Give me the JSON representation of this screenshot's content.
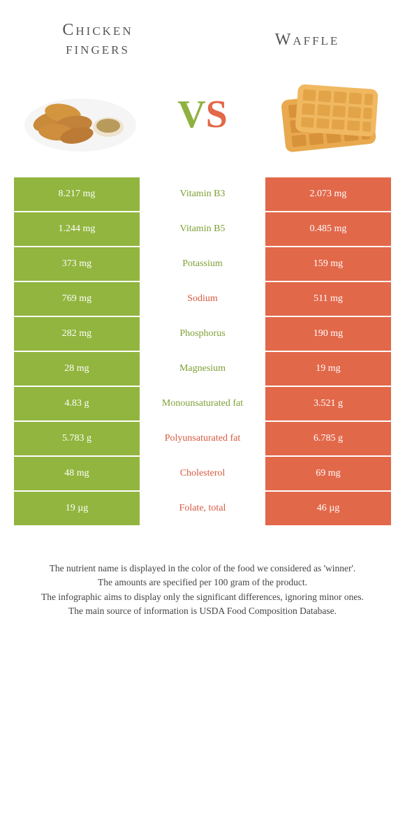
{
  "header": {
    "left_title": "Chicken fingers",
    "right_title": "Waffle",
    "vs_v": "V",
    "vs_s": "S"
  },
  "colors": {
    "green": "#91b53e",
    "orange": "#e2684a",
    "green_text": "#7da035",
    "orange_text": "#d65a3f",
    "bg": "#ffffff"
  },
  "rows": [
    {
      "left": "8.217 mg",
      "label": "Vitamin B3",
      "right": "2.073 mg",
      "winner": "left"
    },
    {
      "left": "1.244 mg",
      "label": "Vitamin B5",
      "right": "0.485 mg",
      "winner": "left"
    },
    {
      "left": "373 mg",
      "label": "Potassium",
      "right": "159 mg",
      "winner": "left"
    },
    {
      "left": "769 mg",
      "label": "Sodium",
      "right": "511 mg",
      "winner": "right"
    },
    {
      "left": "282 mg",
      "label": "Phosphorus",
      "right": "190 mg",
      "winner": "left"
    },
    {
      "left": "28 mg",
      "label": "Magnesium",
      "right": "19 mg",
      "winner": "left"
    },
    {
      "left": "4.83 g",
      "label": "Monounsaturated fat",
      "right": "3.521 g",
      "winner": "left"
    },
    {
      "left": "5.783 g",
      "label": "Polyunsaturated fat",
      "right": "6.785 g",
      "winner": "right"
    },
    {
      "left": "48 mg",
      "label": "Cholesterol",
      "right": "69 mg",
      "winner": "right"
    },
    {
      "left": "19 µg",
      "label": "Folate, total",
      "right": "46 µg",
      "winner": "right"
    }
  ],
  "footer": {
    "line1": "The nutrient name is displayed in the color of the food we considered as 'winner'.",
    "line2": "The amounts are specified per 100 gram of the product.",
    "line3": "The infographic aims to display only the significant differences, ignoring minor ones.",
    "line4": "The main source of information is USDA Food Composition Database."
  }
}
